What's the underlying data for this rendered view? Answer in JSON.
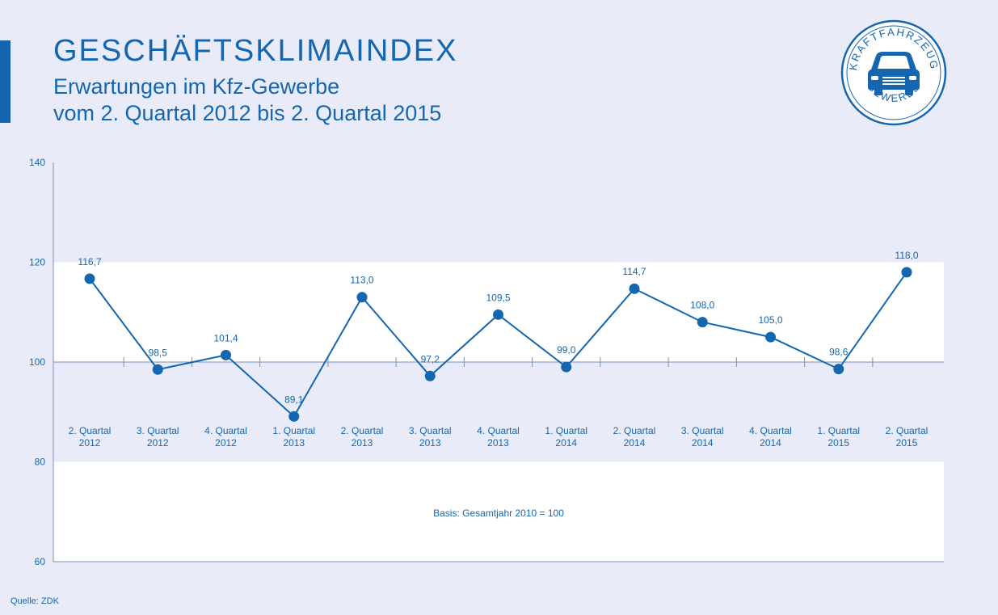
{
  "header": {
    "title": "GESCHÄFTSKLIMAINDEX",
    "subtitle_line1": "Erwartungen im Kfz-Gewerbe",
    "subtitle_line2": "vom 2. Quartal 2012 bis 2. Quartal 2015"
  },
  "logo": {
    "text_top": "KRAFTFAHRZEUG",
    "text_bottom": "GEWERBE",
    "icon": "car-icon"
  },
  "colors": {
    "accent": "#1466b0",
    "background": "#e9ecf8",
    "band": "#ffffff"
  },
  "chart_data": {
    "type": "line",
    "categories": [
      "2. Quartal 2012",
      "3. Quartal 2012",
      "4. Quartal 2012",
      "1. Quartal 2013",
      "2. Quartal 2013",
      "3. Quartal 2013",
      "4. Quartal 2013",
      "1. Quartal 2014",
      "2. Quartal 2014",
      "3. Quartal 2014",
      "4. Quartal 2014",
      "1. Quartal 2015",
      "2. Quartal 2015"
    ],
    "values": [
      116.7,
      98.5,
      101.4,
      89.1,
      113.0,
      97.2,
      109.5,
      99.0,
      114.7,
      108.0,
      105.0,
      98.6,
      118.0
    ],
    "value_labels": [
      "116,7",
      "98,5",
      "101,4",
      "89,1",
      "113,0",
      "97,2",
      "109,5",
      "99,0",
      "114,7",
      "108,0",
      "105,0",
      "98,6",
      "118,0"
    ],
    "ylim": [
      60,
      140
    ],
    "yticks": [
      60,
      80,
      100,
      120,
      140
    ],
    "baseline": 100,
    "note": "Basis: Gesamtjahr 2010 = 100",
    "grid": false
  },
  "footer": {
    "source": "Quelle: ZDK"
  }
}
